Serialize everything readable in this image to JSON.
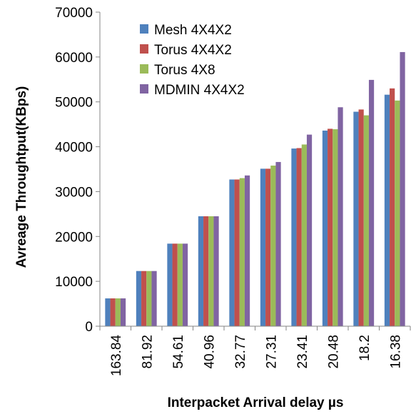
{
  "chart_data": {
    "type": "bar",
    "title": "",
    "xlabel": "Interpacket Arrival delay µs",
    "ylabel": "Avreage Throughtput(KBps)",
    "ylim": [
      0,
      70000
    ],
    "yticks": [
      "0",
      "10000",
      "20000",
      "30000",
      "40000",
      "50000",
      "60000",
      "70000"
    ],
    "grid": false,
    "legend_position": "top-left",
    "categories": [
      "163.84",
      "81.92",
      "54.61",
      "40.96",
      "32.77",
      "27.31",
      "23.41",
      "20.48",
      "18.2",
      "16.38"
    ],
    "series": [
      {
        "name": "Mesh 4X4X2",
        "color": "#4f81bd",
        "values": [
          6200,
          12300,
          18400,
          24500,
          32700,
          35100,
          39600,
          43600,
          47800,
          51600
        ]
      },
      {
        "name": "Torus 4X4X2",
        "color": "#c0504d",
        "values": [
          6200,
          12300,
          18400,
          24500,
          32700,
          35100,
          39700,
          44000,
          48300,
          53000
        ]
      },
      {
        "name": "Torus 4X8",
        "color": "#9bbb59",
        "values": [
          6200,
          12300,
          18400,
          24500,
          33000,
          35800,
          40500,
          43900,
          47000,
          50300
        ]
      },
      {
        "name": "MDMIN 4X4X2",
        "color": "#8064a2",
        "values": [
          6200,
          12300,
          18400,
          24500,
          33600,
          36600,
          42700,
          48800,
          54900,
          61100
        ]
      }
    ]
  }
}
